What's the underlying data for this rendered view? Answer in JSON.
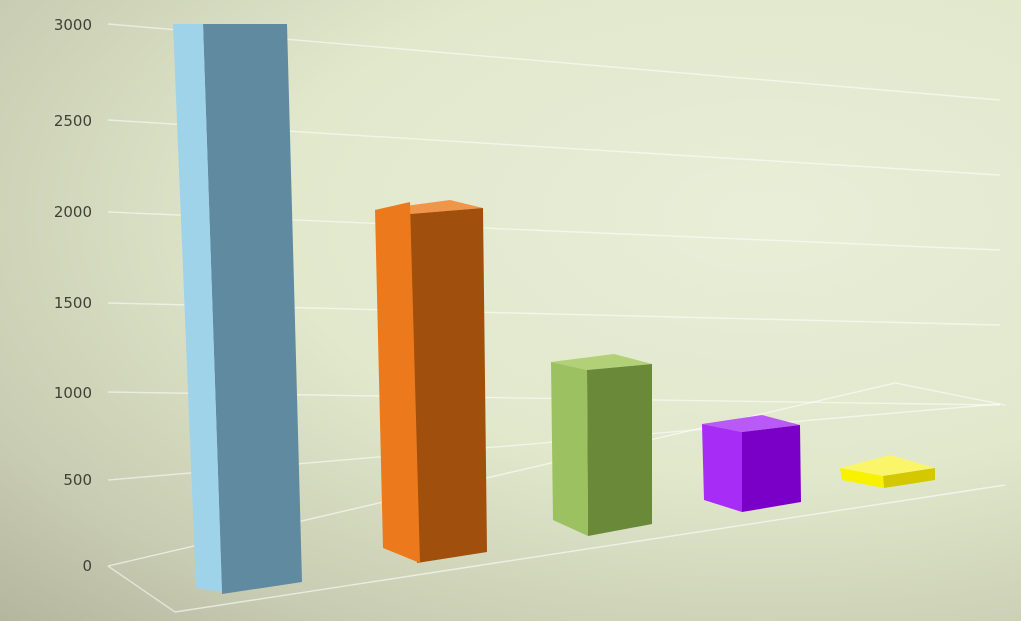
{
  "chart_data": {
    "type": "bar",
    "title": "",
    "xlabel": "",
    "ylabel": "",
    "ylim": [
      0,
      3000
    ],
    "yticks": [
      0,
      500,
      1000,
      1500,
      2000,
      2500,
      3000
    ],
    "grid": true,
    "legend": "none",
    "three_d": true,
    "categories": [
      "",
      "",
      "",
      "",
      ""
    ],
    "values": [
      3000,
      1950,
      1100,
      550,
      80
    ],
    "colors": [
      {
        "front": "#9fd3ea",
        "side": "#5f8aa0",
        "top": "#b4e0f2"
      },
      {
        "front": "#ec7a1c",
        "side": "#a14f0c",
        "top": "#f0954a"
      },
      {
        "front": "#9cc160",
        "side": "#6a8a3a",
        "top": "#b2d078"
      },
      {
        "front": "#a72cf5",
        "side": "#7a00c8",
        "top": "#b95af6"
      },
      {
        "front": "#f8f200",
        "side": "#d4c800",
        "top": "#fbf56a"
      }
    ]
  }
}
